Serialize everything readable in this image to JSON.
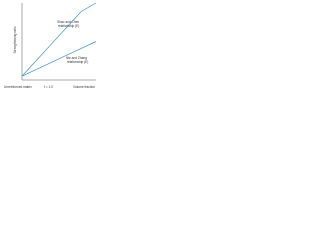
{
  "chart_data": {
    "type": "line",
    "y_label": "Strengthening ratio",
    "x_label": "Volume fraction",
    "annotations": [
      "Unreinforced matrix",
      "f = 1.0"
    ],
    "x": [
      0,
      0.2,
      0.4,
      0.6,
      0.8,
      1.0
    ],
    "xlim": [
      0,
      1
    ],
    "ylim": [
      0,
      1
    ],
    "series": [
      {
        "name": "Shao and Chen relationship (E)",
        "color": "#3d8fd1",
        "values": [
          0.05,
          0.26,
          0.47,
          0.68,
          0.89,
          1.0
        ]
      },
      {
        "name": "Nie and Zhang relationship (E)",
        "color": "#3d8fd1",
        "values": [
          0.05,
          0.14,
          0.23,
          0.32,
          0.41,
          0.5
        ]
      }
    ]
  }
}
